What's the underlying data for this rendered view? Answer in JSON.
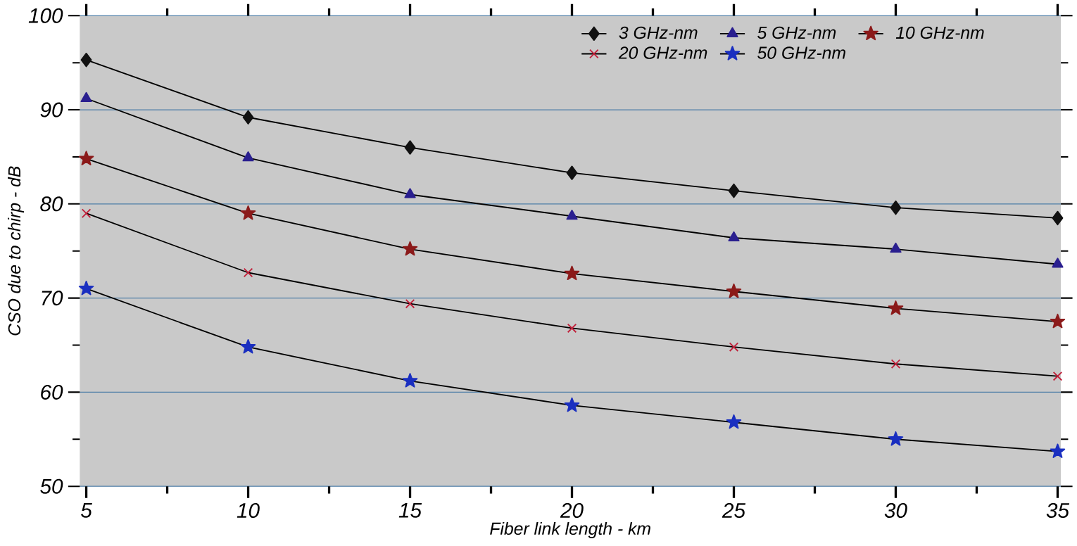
{
  "chart_data": {
    "type": "line",
    "xlabel": "Fiber link length - km",
    "ylabel": "CSO due to chirp - dB",
    "x": [
      5,
      10,
      15,
      20,
      25,
      30,
      35
    ],
    "series": [
      {
        "name": "3 GHz-nm",
        "color": "#111111",
        "marker": "diamond",
        "values": [
          95.3,
          89.2,
          86.0,
          83.3,
          81.4,
          79.6,
          78.5
        ]
      },
      {
        "name": "5 GHz-nm",
        "color": "#2a1f8f",
        "marker": "triangle",
        "values": [
          91.2,
          84.9,
          81.0,
          78.7,
          76.4,
          75.2,
          73.6
        ]
      },
      {
        "name": "10 GHz-nm",
        "color": "#8b1a1a",
        "marker": "star",
        "values": [
          84.8,
          79.0,
          75.2,
          72.6,
          70.7,
          68.9,
          67.5
        ]
      },
      {
        "name": "20 GHz-nm",
        "color": "#c0203a",
        "marker": "cross",
        "values": [
          79.0,
          72.7,
          69.4,
          66.8,
          64.8,
          63.0,
          61.7
        ]
      },
      {
        "name": "50 GHz-nm",
        "color": "#1a2fc0",
        "marker": "star",
        "values": [
          71.0,
          64.8,
          61.2,
          58.6,
          56.8,
          55.0,
          53.7
        ]
      }
    ],
    "xlim": [
      4.8,
      35.1
    ],
    "ylim": [
      50,
      100
    ],
    "xticks": [
      5,
      10,
      15,
      20,
      25,
      30,
      35
    ],
    "yticks": [
      50,
      60,
      70,
      80,
      90,
      100
    ],
    "grid": "y",
    "legend": "top right",
    "line_style": "solid"
  }
}
